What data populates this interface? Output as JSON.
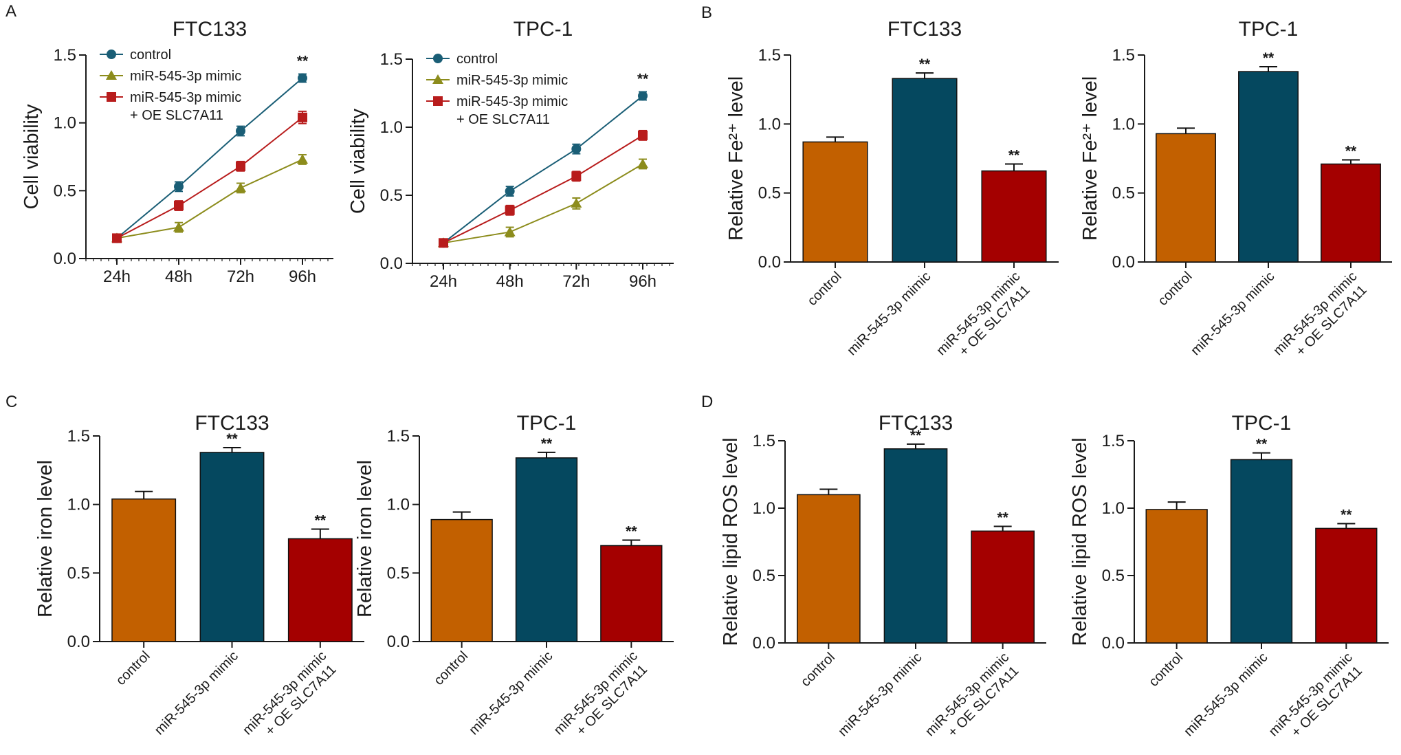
{
  "colors": {
    "control": "#C26000",
    "mimic": "#05485F",
    "oe": "#A40000",
    "line_control": "#1A5E76",
    "line_mimic": "#8C8C1C",
    "line_oe": "#B81C1C",
    "axis": "#1A1A1A"
  },
  "chart_data": [
    {
      "panel": "A",
      "type": "line",
      "title": "FTC133",
      "ylabel": "Cell viability",
      "xlabel": "",
      "x": [
        "24h",
        "48h",
        "72h",
        "96h"
      ],
      "ylim": [
        0,
        1.5
      ],
      "yticks": [
        "0.0",
        "0.5",
        "1.0",
        "1.5"
      ],
      "legend": [
        "control",
        "miR-545-3p mimic",
        "miR-545-3p mimic\n+ OE SLC7A11"
      ],
      "series": [
        {
          "name": "control",
          "values": [
            0.15,
            0.53,
            0.94,
            1.33
          ],
          "errors": [
            0.01,
            0.035,
            0.035,
            0.03
          ]
        },
        {
          "name": "miR-545-3p mimic",
          "values": [
            0.15,
            0.23,
            0.52,
            0.73
          ],
          "errors": [
            0.01,
            0.035,
            0.035,
            0.035
          ]
        },
        {
          "name": "miR-545-3p mimic + OE SLC7A11",
          "values": [
            0.15,
            0.39,
            0.68,
            1.04
          ],
          "errors": [
            0.01,
            0.035,
            0.035,
            0.045
          ]
        }
      ],
      "annotations": [
        {
          "x": "96h",
          "text": "**"
        }
      ]
    },
    {
      "panel": "",
      "type": "line",
      "title": "TPC-1",
      "ylabel": "Cell viability",
      "xlabel": "",
      "x": [
        "24h",
        "48h",
        "72h",
        "96h"
      ],
      "ylim": [
        0,
        1.5
      ],
      "yticks": [
        "0.0",
        "0.5",
        "1.0",
        "1.5"
      ],
      "legend": [
        "control",
        "miR-545-3p mimic",
        "miR-545-3p mimic\n+ OE SLC7A11"
      ],
      "series": [
        {
          "name": "control",
          "values": [
            0.15,
            0.53,
            0.84,
            1.23
          ],
          "errors": [
            0.01,
            0.035,
            0.035,
            0.03
          ]
        },
        {
          "name": "miR-545-3p mimic",
          "values": [
            0.15,
            0.23,
            0.44,
            0.73
          ],
          "errors": [
            0.01,
            0.035,
            0.04,
            0.035
          ]
        },
        {
          "name": "miR-545-3p mimic + OE SLC7A11",
          "values": [
            0.15,
            0.39,
            0.64,
            0.94
          ],
          "errors": [
            0.01,
            0.035,
            0.035,
            0.035
          ]
        }
      ],
      "annotations": [
        {
          "x": "96h",
          "text": "**"
        }
      ]
    },
    {
      "panel": "B",
      "type": "bar",
      "title": "FTC133",
      "ylabel": "Relative Fe²⁺ level",
      "categories": [
        "control",
        "miR-545-3p mimic",
        "miR-545-3p mimic\n+ OE SLC7A11"
      ],
      "values": [
        0.87,
        1.33,
        0.66
      ],
      "errors": [
        0.035,
        0.04,
        0.05
      ],
      "significance": [
        "",
        "**",
        "**"
      ],
      "ylim": [
        0,
        1.5
      ],
      "yticks": [
        "0.0",
        "0.5",
        "1.0",
        "1.5"
      ]
    },
    {
      "panel": "",
      "type": "bar",
      "title": "TPC-1",
      "ylabel": "Relative Fe²⁺ level",
      "categories": [
        "control",
        "miR-545-3p mimic",
        "miR-545-3p mimic\n+ OE SLC7A11"
      ],
      "values": [
        0.93,
        1.38,
        0.71
      ],
      "errors": [
        0.04,
        0.035,
        0.03
      ],
      "significance": [
        "",
        "**",
        "**"
      ],
      "ylim": [
        0,
        1.5
      ],
      "yticks": [
        "0.0",
        "0.5",
        "1.0",
        "1.5"
      ]
    },
    {
      "panel": "C",
      "type": "bar",
      "title": "FTC133",
      "ylabel": "Relative iron level",
      "categories": [
        "control",
        "miR-545-3p mimic",
        "miR-545-3p mimic\n+ OE SLC7A11"
      ],
      "values": [
        1.04,
        1.38,
        0.75
      ],
      "errors": [
        0.055,
        0.035,
        0.07
      ],
      "significance": [
        "",
        "**",
        "**"
      ],
      "ylim": [
        0,
        1.5
      ],
      "yticks": [
        "0.0",
        "0.5",
        "1.0",
        "1.5"
      ]
    },
    {
      "panel": "",
      "type": "bar",
      "title": "TPC-1",
      "ylabel": "Relative iron level",
      "categories": [
        "control",
        "miR-545-3p mimic",
        "miR-545-3p mimic\n+ OE SLC7A11"
      ],
      "values": [
        0.89,
        1.34,
        0.7
      ],
      "errors": [
        0.055,
        0.04,
        0.04
      ],
      "significance": [
        "",
        "**",
        "**"
      ],
      "ylim": [
        0,
        1.5
      ],
      "yticks": [
        "0.0",
        "0.5",
        "1.0",
        "1.5"
      ]
    },
    {
      "panel": "D",
      "type": "bar",
      "title": "FTC133",
      "ylabel": "Relative lipid ROS level",
      "categories": [
        "control",
        "miR-545-3p mimic",
        "miR-545-3p mimic\n+ OE SLC7A11"
      ],
      "values": [
        1.1,
        1.44,
        0.83
      ],
      "errors": [
        0.04,
        0.035,
        0.035
      ],
      "significance": [
        "",
        "**",
        "**"
      ],
      "ylim": [
        0,
        1.5
      ],
      "yticks": [
        "0.0",
        "0.5",
        "1.0",
        "1.5"
      ]
    },
    {
      "panel": "",
      "type": "bar",
      "title": "TPC-1",
      "ylabel": "Relative lipid ROS level",
      "categories": [
        "control",
        "miR-545-3p mimic",
        "miR-545-3p mimic\n+ OE SLC7A11"
      ],
      "values": [
        0.99,
        1.36,
        0.85
      ],
      "errors": [
        0.055,
        0.05,
        0.035
      ],
      "significance": [
        "",
        "**",
        "**"
      ],
      "ylim": [
        0,
        1.5
      ],
      "yticks": [
        "0.0",
        "0.5",
        "1.0",
        "1.5"
      ]
    }
  ]
}
